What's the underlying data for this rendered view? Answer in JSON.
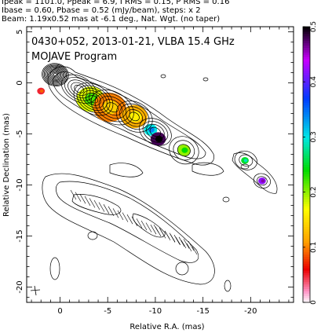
{
  "header": {
    "line1": "Ipeak = 1101.0, Ppeak = 6.9, I RMS = 0.15, P RMS = 0.16",
    "line2": "Ibase = 0.60, Pbase = 0.52 (mJy/beam), steps: x 2",
    "line3": "Beam: 1.19x0.52 mas at -6.1 deg., Nat. Wgt. (no taper)"
  },
  "chart_data": {
    "type": "heatmap",
    "title": "0430+052, 2013-01-21, VLBA 15.4 GHz",
    "subtitle": "MOJAVE Program",
    "xlabel": "Relative R.A. (mas)",
    "ylabel": "Relative Declination (mas)",
    "xlim": [
      3.5,
      -24.5
    ],
    "ylim": [
      -21.5,
      5.5
    ],
    "xticks": [
      0,
      -5,
      -10,
      -15,
      -20
    ],
    "xtick_labels": [
      "0",
      "-5",
      "-10",
      "-15",
      "-20"
    ],
    "yticks": [
      5,
      0,
      -5,
      -10,
      -15,
      -20
    ],
    "ytick_labels": [
      "5",
      "0",
      "-5",
      "-10",
      "-15",
      "-20"
    ],
    "colorbar": {
      "min": 0,
      "max": 0.5,
      "ticks": [
        0,
        0.1,
        0.2,
        0.3,
        0.4,
        0.5
      ],
      "tick_labels": [
        "0",
        "0.1",
        "0.2",
        "0.3",
        "0.4",
        "0.5"
      ]
    },
    "contour_components": [
      {
        "ra": 0.5,
        "dec": 0.8,
        "major": 1.4,
        "minor": 1.1,
        "pa": 10,
        "levels": 12
      },
      {
        "ra": -2.0,
        "dec": -0.6,
        "major": 2.0,
        "minor": 1.2,
        "pa": 30,
        "levels": 5
      },
      {
        "ra": -3.5,
        "dec": -1.6,
        "major": 2.2,
        "minor": 1.4,
        "pa": 30,
        "levels": 6
      },
      {
        "ra": -5.5,
        "dec": -2.4,
        "major": 2.4,
        "minor": 1.5,
        "pa": 30,
        "levels": 5
      },
      {
        "ra": -7.8,
        "dec": -3.3,
        "major": 2.0,
        "minor": 1.4,
        "pa": 30,
        "levels": 5
      },
      {
        "ra": -10.0,
        "dec": -4.8,
        "major": 1.8,
        "minor": 1.2,
        "pa": 30,
        "levels": 4
      },
      {
        "ra": -13.0,
        "dec": -6.6,
        "major": 1.6,
        "minor": 1.3,
        "pa": 30,
        "levels": 3
      },
      {
        "ra": -19.5,
        "dec": -7.6,
        "major": 1.2,
        "minor": 0.9,
        "pa": 20,
        "levels": 2
      },
      {
        "ra": -21.2,
        "dec": -9.6,
        "major": 0.9,
        "minor": 0.7,
        "pa": 20,
        "levels": 2
      }
    ],
    "polarization_spots": [
      {
        "ra": 2.0,
        "dec": -0.8,
        "r": 0.35,
        "value": 0.05
      },
      {
        "ra": -3.2,
        "dec": -1.6,
        "r": 1.3,
        "value": 0.18
      },
      {
        "ra": -5.2,
        "dec": -2.4,
        "r": 1.5,
        "value": 0.1
      },
      {
        "ra": -7.8,
        "dec": -3.3,
        "r": 1.2,
        "value": 0.12
      },
      {
        "ra": -9.5,
        "dec": -4.6,
        "r": 0.6,
        "value": 0.3
      },
      {
        "ra": -10.3,
        "dec": -5.5,
        "r": 0.7,
        "value": 0.48
      },
      {
        "ra": -13.0,
        "dec": -6.6,
        "r": 0.6,
        "value": 0.2
      },
      {
        "ra": -19.4,
        "dec": -7.6,
        "r": 0.35,
        "value": 0.25
      },
      {
        "ra": -21.2,
        "dec": -9.6,
        "r": 0.35,
        "value": 0.42
      }
    ]
  }
}
